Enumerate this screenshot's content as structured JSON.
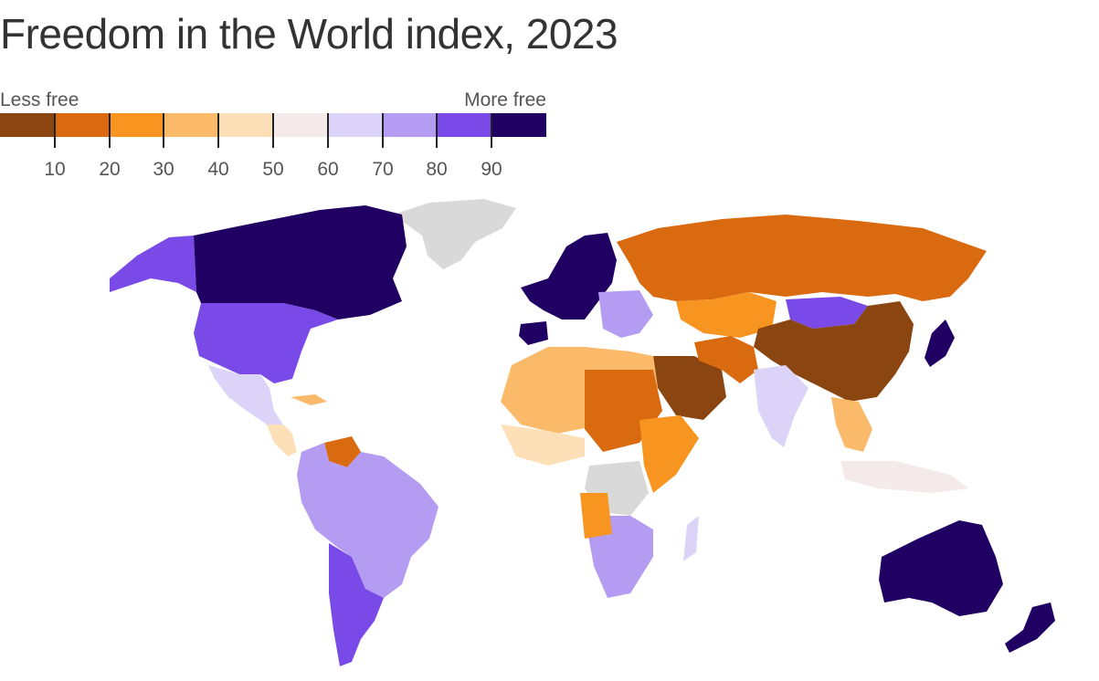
{
  "title": "Freedom in the World index, 2023",
  "legend": {
    "low_label": "Less free",
    "high_label": "More free",
    "ticks": [
      "10",
      "20",
      "30",
      "40",
      "50",
      "60",
      "70",
      "80",
      "90"
    ],
    "colors": [
      "#8a4510",
      "#d96a10",
      "#f79520",
      "#fbb96a",
      "#fde0b8",
      "#f4eaea",
      "#dcd4f8",
      "#b49cf3",
      "#7a4ae8",
      "#210063"
    ]
  },
  "no_data_color": "#d9d9d9",
  "ocean_color": "#ffffff"
}
